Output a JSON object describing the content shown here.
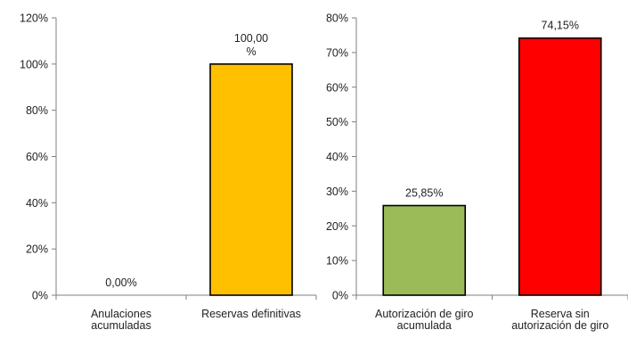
{
  "charts": [
    {
      "type": "bar",
      "categories": [
        [
          "Anulaciones",
          "acumuladas"
        ],
        [
          "Reservas definitivas"
        ]
      ],
      "values": [
        0.0,
        100.0
      ],
      "data_labels": [
        [
          "0,00%"
        ],
        [
          "100,00",
          "%"
        ]
      ],
      "colors": [
        "#ffffff",
        "#ffc000"
      ],
      "ylim": [
        0,
        120
      ],
      "yticks": [
        0,
        20,
        40,
        60,
        80,
        100,
        120
      ],
      "ytick_labels": [
        "0%",
        "20%",
        "40%",
        "60%",
        "80%",
        "100%",
        "120%"
      ],
      "grid": false,
      "legend": "none"
    },
    {
      "type": "bar",
      "categories": [
        [
          "Autorización de giro",
          "acumulada"
        ],
        [
          "Reserva sin",
          "autorización de giro"
        ]
      ],
      "values": [
        25.85,
        74.15
      ],
      "data_labels": [
        [
          "25,85%"
        ],
        [
          "74,15%"
        ]
      ],
      "colors": [
        "#9bbb59",
        "#ff0000"
      ],
      "ylim": [
        0,
        80
      ],
      "yticks": [
        0,
        10,
        20,
        30,
        40,
        50,
        60,
        70,
        80
      ],
      "ytick_labels": [
        "0%",
        "10%",
        "20%",
        "30%",
        "40%",
        "50%",
        "60%",
        "70%",
        "80%"
      ],
      "grid": false,
      "legend": "none"
    }
  ],
  "chart_data": [
    {
      "type": "bar",
      "categories": [
        "Anulaciones acumuladas",
        "Reservas definitivas"
      ],
      "values": [
        0.0,
        100.0
      ],
      "ylim": [
        0,
        120
      ],
      "grid": false
    },
    {
      "type": "bar",
      "categories": [
        "Autorización de giro acumulada",
        "Reserva sin autorización de giro"
      ],
      "values": [
        25.85,
        74.15
      ],
      "ylim": [
        0,
        80
      ],
      "grid": false
    }
  ]
}
